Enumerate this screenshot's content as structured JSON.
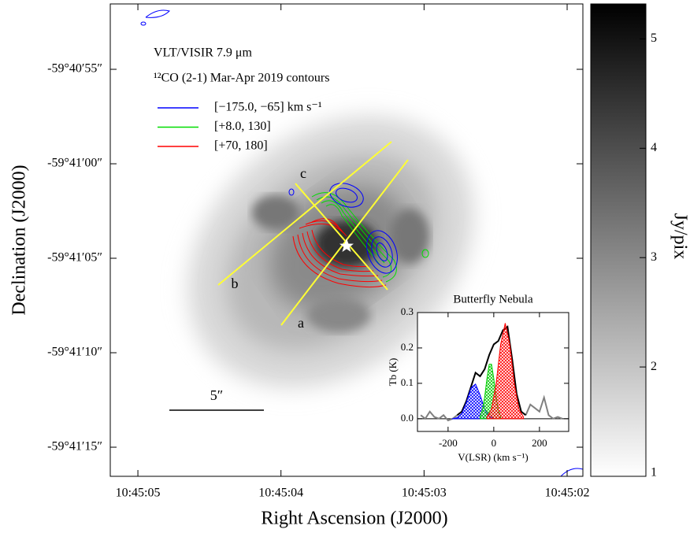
{
  "chart_data": [
    {
      "type": "image",
      "xlabel": "Right Ascension (J2000)",
      "ylabel": "Declination (J2000)",
      "xlim": [
        38705.193,
        38701.89
      ],
      "xticks": [
        {
          "value": 38705,
          "label": "10:45:05"
        },
        {
          "value": 38704,
          "label": "10:45:04"
        },
        {
          "value": 38703,
          "label": "10:45:03"
        },
        {
          "value": 38702,
          "label": "10:45:02"
        }
      ],
      "ylim": [
        -59.687928,
        -59.680983
      ],
      "yticks": [
        {
          "value": -59.681944,
          "label": "-59°40′55″"
        },
        {
          "value": -59.683333,
          "label": "-59°41′00″"
        },
        {
          "value": -59.684722,
          "label": "-59°41′05″"
        },
        {
          "value": -59.686111,
          "label": "-59°41′10″"
        },
        {
          "value": -59.6875,
          "label": "-59°41′15″"
        }
      ],
      "annotations": [
        "VLT/VISIR 7.9 μm",
        "¹²CO (2-1) Mar-Apr 2019 contours",
        "a",
        "b",
        "c",
        "5″"
      ],
      "legend": [
        {
          "label": "[−175.0, −65] km s⁻¹",
          "color": "#0000ff"
        },
        {
          "label": "[+8.0, 130]",
          "color": "#00dd00"
        },
        {
          "label": "[+70, 180]",
          "color": "#ff0000"
        }
      ],
      "colorbar": {
        "label": "Jy/pix",
        "lim": [
          1,
          5.32
        ],
        "ticks": [
          1,
          2,
          3,
          4,
          5
        ]
      }
    },
    {
      "type": "line",
      "title": "Butterfly Nebula",
      "xlabel": "V(LSR) (km s⁻¹)",
      "ylabel": "Tb (K)",
      "xlim": [
        -334,
        328
      ],
      "xticks": [
        -200,
        0,
        200
      ],
      "ylim": [
        -0.036,
        0.3
      ],
      "yticks": [
        {
          "value": 0,
          "label": "0.0"
        },
        0.1,
        0.2,
        0.3
      ],
      "series": [
        {
          "color": "#808080",
          "x": [
            -320,
            -300,
            -280,
            -260,
            -240,
            -220,
            -200,
            -180,
            -160,
            -140,
            -120,
            -100,
            -80,
            -60,
            -40,
            -20,
            0,
            20,
            40,
            60,
            80,
            100,
            120,
            140,
            160,
            180,
            200,
            220,
            240,
            260,
            280,
            300
          ],
          "values": [
            0.01,
            0.0,
            0.02,
            0.005,
            0.0,
            0.01,
            -0.005,
            0.0,
            0.01,
            null,
            null,
            null,
            null,
            null,
            null,
            null,
            null,
            null,
            null,
            null,
            null,
            null,
            null,
            0.01,
            0.04,
            0.03,
            0.02,
            0.06,
            0.01,
            0.0,
            0.005,
            0.0
          ]
        },
        {
          "color": "#000000",
          "x": [
            -160,
            -140,
            -120,
            -100,
            -80,
            -60,
            -40,
            -20,
            0,
            20,
            40,
            60,
            80,
            100,
            120,
            140
          ],
          "values": [
            0.01,
            0.02,
            0.05,
            0.09,
            0.13,
            0.12,
            0.14,
            0.18,
            0.21,
            0.22,
            0.25,
            0.26,
            0.17,
            0.07,
            0.02,
            0.01
          ]
        },
        {
          "color": "#0000ff",
          "fill": true,
          "x": [
            -180,
            -160,
            -140,
            -120,
            -100,
            -80,
            -60,
            -40,
            -20,
            0
          ],
          "values": [
            0.0,
            0.003,
            0.015,
            0.046,
            0.087,
            0.098,
            0.067,
            0.027,
            0.007,
            0.001
          ]
        },
        {
          "color": "#00cc00",
          "fill": true,
          "x": [
            -60,
            -50,
            -40,
            -30,
            -20,
            -10,
            0,
            10,
            20,
            30
          ],
          "values": [
            0.007,
            0.024,
            0.061,
            0.113,
            0.154,
            0.154,
            0.113,
            0.061,
            0.024,
            0.007
          ]
        },
        {
          "color": "#ff0000",
          "fill": true,
          "x": [
            -30,
            -10,
            10,
            30,
            50,
            70,
            90,
            110,
            130
          ],
          "values": [
            0.005,
            0.027,
            0.098,
            0.21,
            0.27,
            0.21,
            0.098,
            0.027,
            0.005
          ]
        }
      ]
    }
  ]
}
